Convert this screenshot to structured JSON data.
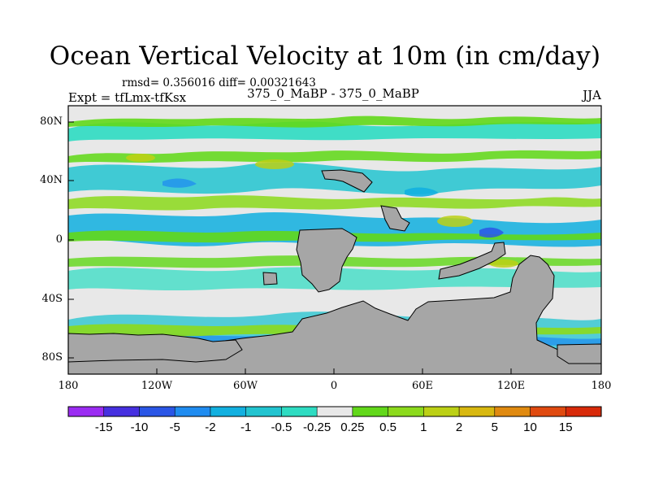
{
  "title": "Ocean Vertical Velocity at 10m (in cm/day)",
  "stats": "rmsd= 0.356016 diff= 0.00321643",
  "experiment": "Expt = tfLmx-tfKsx",
  "comparison": "375_0_MaBP - 375_0_MaBP",
  "season": "JJA",
  "map": {
    "lon_range": [
      -180,
      180
    ],
    "lat_range": [
      -90,
      90
    ],
    "lat_ticks": [
      "80N",
      "40N",
      "0",
      "40S",
      "80S"
    ],
    "lon_ticks": [
      "180",
      "120W",
      "60W",
      "0",
      "60E",
      "120E",
      "180"
    ],
    "land_color": "#a6a6a6",
    "background_color": "#e8e8e8"
  },
  "legend": {
    "labels": [
      "-15",
      "-10",
      "-5",
      "-2",
      "-1",
      "-0.5",
      "-0.25",
      "0.25",
      "0.5",
      "1",
      "2",
      "5",
      "10",
      "15"
    ],
    "colors": [
      "#9b2cf2",
      "#4630e0",
      "#2a56e6",
      "#1f8cf0",
      "#12b0e0",
      "#22c4d0",
      "#2edcc2",
      "#e8e8e8",
      "#62d81a",
      "#8cda1c",
      "#bcd015",
      "#d8b810",
      "#e08a10",
      "#e04a10",
      "#d82a0a"
    ]
  },
  "colors": {
    "teal": "#2edcc2",
    "cyan": "#22c4d0",
    "light_blue": "#12b0e0",
    "blue": "#1f8cf0",
    "green": "#62d81a",
    "yellow_green": "#8cda1c",
    "yellow": "#bcd015"
  }
}
